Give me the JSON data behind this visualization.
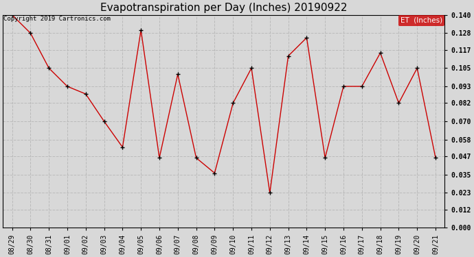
{
  "title": "Evapotranspiration per Day (Inches) 20190922",
  "copyright": "Copyright 2019 Cartronics.com",
  "legend_label": "ET  (Inches)",
  "x_labels": [
    "08/29",
    "08/30",
    "08/31",
    "09/01",
    "09/02",
    "09/03",
    "09/04",
    "09/05",
    "09/06",
    "09/07",
    "09/08",
    "09/09",
    "09/10",
    "09/11",
    "09/12",
    "09/13",
    "09/14",
    "09/15",
    "09/16",
    "09/17",
    "09/18",
    "09/19",
    "09/20",
    "09/21"
  ],
  "y_values": [
    0.14,
    0.128,
    0.105,
    0.093,
    0.088,
    0.07,
    0.053,
    0.13,
    0.046,
    0.101,
    0.046,
    0.036,
    0.082,
    0.105,
    0.023,
    0.113,
    0.125,
    0.046,
    0.093,
    0.093,
    0.115,
    0.082,
    0.105,
    0.046
  ],
  "y_ticks": [
    0.0,
    0.012,
    0.023,
    0.035,
    0.047,
    0.058,
    0.07,
    0.082,
    0.093,
    0.105,
    0.117,
    0.128,
    0.14
  ],
  "y_min": 0.0,
  "y_max": 0.14,
  "line_color": "#cc0000",
  "marker_color": "#000000",
  "bg_color": "#d8d8d8",
  "plot_bg_color": "#d8d8d8",
  "grid_color": "#bbbbbb",
  "legend_bg": "#cc0000",
  "legend_text_color": "#ffffff",
  "title_fontsize": 11,
  "copyright_fontsize": 6.5,
  "tick_fontsize": 7,
  "legend_fontsize": 7.5,
  "border_color": "#000000"
}
